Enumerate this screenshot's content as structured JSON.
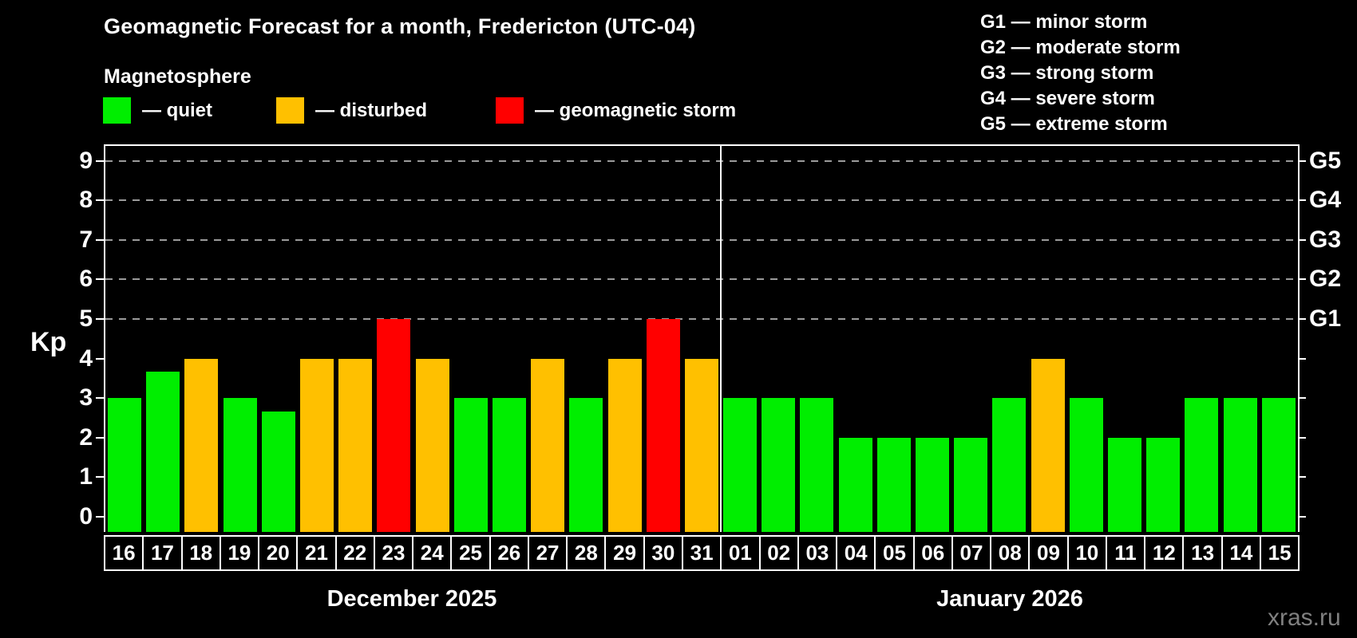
{
  "title": "Geomagnetic Forecast for a month, Fredericton (UTC-04)",
  "subtitle": "Magnetosphere",
  "legend": {
    "items": [
      {
        "name": "quiet",
        "label": "— quiet",
        "color": "#00ee00"
      },
      {
        "name": "disturbed",
        "label": "— disturbed",
        "color": "#ffc000"
      },
      {
        "name": "storm",
        "label": "— geomagnetic storm",
        "color": "#ff0000"
      }
    ]
  },
  "g_legend": {
    "items": [
      "G1 — minor storm",
      "G2 — moderate storm",
      "G3 — strong storm",
      "G4 — severe storm",
      "G5 — extreme storm"
    ]
  },
  "watermark": "xras.ru",
  "chart_data": {
    "type": "bar",
    "title": "Geomagnetic Forecast for a month, Fredericton (UTC-04)",
    "xlabel": "",
    "ylabel": "Kp",
    "ylim": [
      0,
      9.4
    ],
    "grid": "horizontal dashed lines at Kp 5-9",
    "legend_position": "top",
    "kp_ticks": [
      0,
      1,
      2,
      3,
      4,
      5,
      6,
      7,
      8,
      9
    ],
    "g_levels": [
      {
        "label": "G1",
        "kp": 5
      },
      {
        "label": "G2",
        "kp": 6
      },
      {
        "label": "G3",
        "kp": 7
      },
      {
        "label": "G4",
        "kp": 8
      },
      {
        "label": "G5",
        "kp": 9
      }
    ],
    "status_colors": {
      "quiet": "#00ee00",
      "disturbed": "#ffc000",
      "storm": "#ff0000"
    },
    "months": [
      {
        "label": "December 2025",
        "day_count": 16
      },
      {
        "label": "January 2026",
        "day_count": 15
      }
    ],
    "days": [
      {
        "day": "16",
        "month": "December 2025",
        "kp": 3,
        "status": "quiet"
      },
      {
        "day": "17",
        "month": "December 2025",
        "kp": 3.67,
        "status": "quiet"
      },
      {
        "day": "18",
        "month": "December 2025",
        "kp": 4,
        "status": "disturbed"
      },
      {
        "day": "19",
        "month": "December 2025",
        "kp": 3,
        "status": "quiet"
      },
      {
        "day": "20",
        "month": "December 2025",
        "kp": 2.67,
        "status": "quiet"
      },
      {
        "day": "21",
        "month": "December 2025",
        "kp": 4,
        "status": "disturbed"
      },
      {
        "day": "22",
        "month": "December 2025",
        "kp": 4,
        "status": "disturbed"
      },
      {
        "day": "23",
        "month": "December 2025",
        "kp": 5,
        "status": "storm"
      },
      {
        "day": "24",
        "month": "December 2025",
        "kp": 4,
        "status": "disturbed"
      },
      {
        "day": "25",
        "month": "December 2025",
        "kp": 3,
        "status": "quiet"
      },
      {
        "day": "26",
        "month": "December 2025",
        "kp": 3,
        "status": "quiet"
      },
      {
        "day": "27",
        "month": "December 2025",
        "kp": 4,
        "status": "disturbed"
      },
      {
        "day": "28",
        "month": "December 2025",
        "kp": 3,
        "status": "quiet"
      },
      {
        "day": "29",
        "month": "December 2025",
        "kp": 4,
        "status": "disturbed"
      },
      {
        "day": "30",
        "month": "December 2025",
        "kp": 5,
        "status": "storm"
      },
      {
        "day": "31",
        "month": "December 2025",
        "kp": 4,
        "status": "disturbed"
      },
      {
        "day": "01",
        "month": "January 2026",
        "kp": 3,
        "status": "quiet"
      },
      {
        "day": "02",
        "month": "January 2026",
        "kp": 3,
        "status": "quiet"
      },
      {
        "day": "03",
        "month": "January 2026",
        "kp": 3,
        "status": "quiet"
      },
      {
        "day": "04",
        "month": "January 2026",
        "kp": 2,
        "status": "quiet"
      },
      {
        "day": "05",
        "month": "January 2026",
        "kp": 2,
        "status": "quiet"
      },
      {
        "day": "06",
        "month": "January 2026",
        "kp": 2,
        "status": "quiet"
      },
      {
        "day": "07",
        "month": "January 2026",
        "kp": 2,
        "status": "quiet"
      },
      {
        "day": "08",
        "month": "January 2026",
        "kp": 3,
        "status": "quiet"
      },
      {
        "day": "09",
        "month": "January 2026",
        "kp": 4,
        "status": "disturbed"
      },
      {
        "day": "10",
        "month": "January 2026",
        "kp": 3,
        "status": "quiet"
      },
      {
        "day": "11",
        "month": "January 2026",
        "kp": 2,
        "status": "quiet"
      },
      {
        "day": "12",
        "month": "January 2026",
        "kp": 2,
        "status": "quiet"
      },
      {
        "day": "13",
        "month": "January 2026",
        "kp": 3,
        "status": "quiet"
      },
      {
        "day": "14",
        "month": "January 2026",
        "kp": 3,
        "status": "quiet"
      },
      {
        "day": "15",
        "month": "January 2026",
        "kp": 3,
        "status": "quiet"
      }
    ]
  }
}
